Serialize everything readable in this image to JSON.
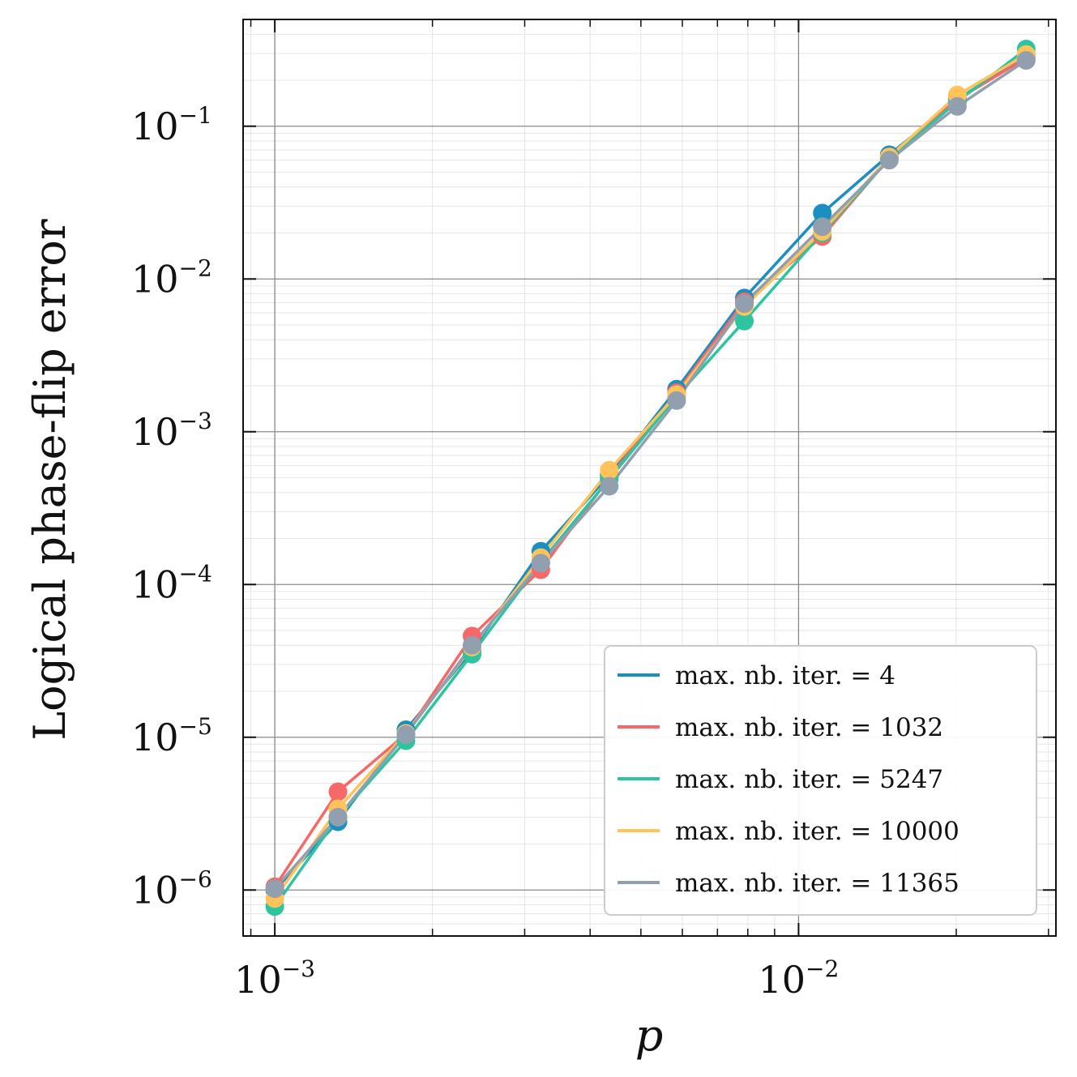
{
  "chart_data": {
    "type": "line",
    "xscale": "log",
    "yscale": "log",
    "xlabel": "p",
    "ylabel": "Logical phase-flip error",
    "xlim": [
      0.00087,
      0.031
    ],
    "ylim": [
      5e-07,
      0.5
    ],
    "grid": true,
    "legend_position": "lower-right",
    "x_ticks": [
      {
        "value": 0.001,
        "base": "10",
        "exp": "−3"
      },
      {
        "value": 0.01,
        "base": "10",
        "exp": "−2"
      }
    ],
    "y_ticks": [
      {
        "value": 1e-06,
        "base": "10",
        "exp": "−6"
      },
      {
        "value": 1e-05,
        "base": "10",
        "exp": "−5"
      },
      {
        "value": 0.0001,
        "base": "10",
        "exp": "−4"
      },
      {
        "value": 0.001,
        "base": "10",
        "exp": "−3"
      },
      {
        "value": 0.01,
        "base": "10",
        "exp": "−2"
      },
      {
        "value": 0.1,
        "base": "10",
        "exp": "−1"
      }
    ],
    "x": [
      0.001,
      0.00132,
      0.00178,
      0.00238,
      0.00322,
      0.00435,
      0.00585,
      0.00788,
      0.0111,
      0.0149,
      0.0201,
      0.0272
    ],
    "series": [
      {
        "name": "max. nb. iter. = 4",
        "color": "#1a8fc0",
        "values": [
          1e-06,
          2.8e-06,
          1.12e-05,
          3.7e-05,
          0.000165,
          0.00052,
          0.0019,
          0.0075,
          0.027,
          0.065,
          0.15,
          0.29
        ]
      },
      {
        "name": "max. nb. iter. = 1032",
        "color": "#f76868",
        "values": [
          1.05e-06,
          4.4e-06,
          1.05e-05,
          4.6e-05,
          0.000125,
          0.0005,
          0.0018,
          0.0071,
          0.019,
          0.062,
          0.15,
          0.28
        ]
      },
      {
        "name": "max. nb. iter. = 5247",
        "color": "#2ec4a0",
        "values": [
          7.8e-07,
          3e-06,
          9.5e-06,
          3.5e-05,
          0.00014,
          0.00049,
          0.0017,
          0.0053,
          0.02,
          0.061,
          0.145,
          0.32
        ]
      },
      {
        "name": "max. nb. iter. = 10000",
        "color": "#ffc35a",
        "values": [
          8.8e-07,
          3.4e-06,
          1.06e-05,
          3.9e-05,
          0.00015,
          0.00056,
          0.00175,
          0.0066,
          0.0205,
          0.063,
          0.16,
          0.295
        ]
      },
      {
        "name": "max. nb. iter. = 11365",
        "color": "#919fae",
        "values": [
          1.02e-06,
          3e-06,
          1.04e-05,
          4e-05,
          0.000138,
          0.00044,
          0.0016,
          0.0069,
          0.022,
          0.06,
          0.135,
          0.27
        ]
      }
    ]
  }
}
